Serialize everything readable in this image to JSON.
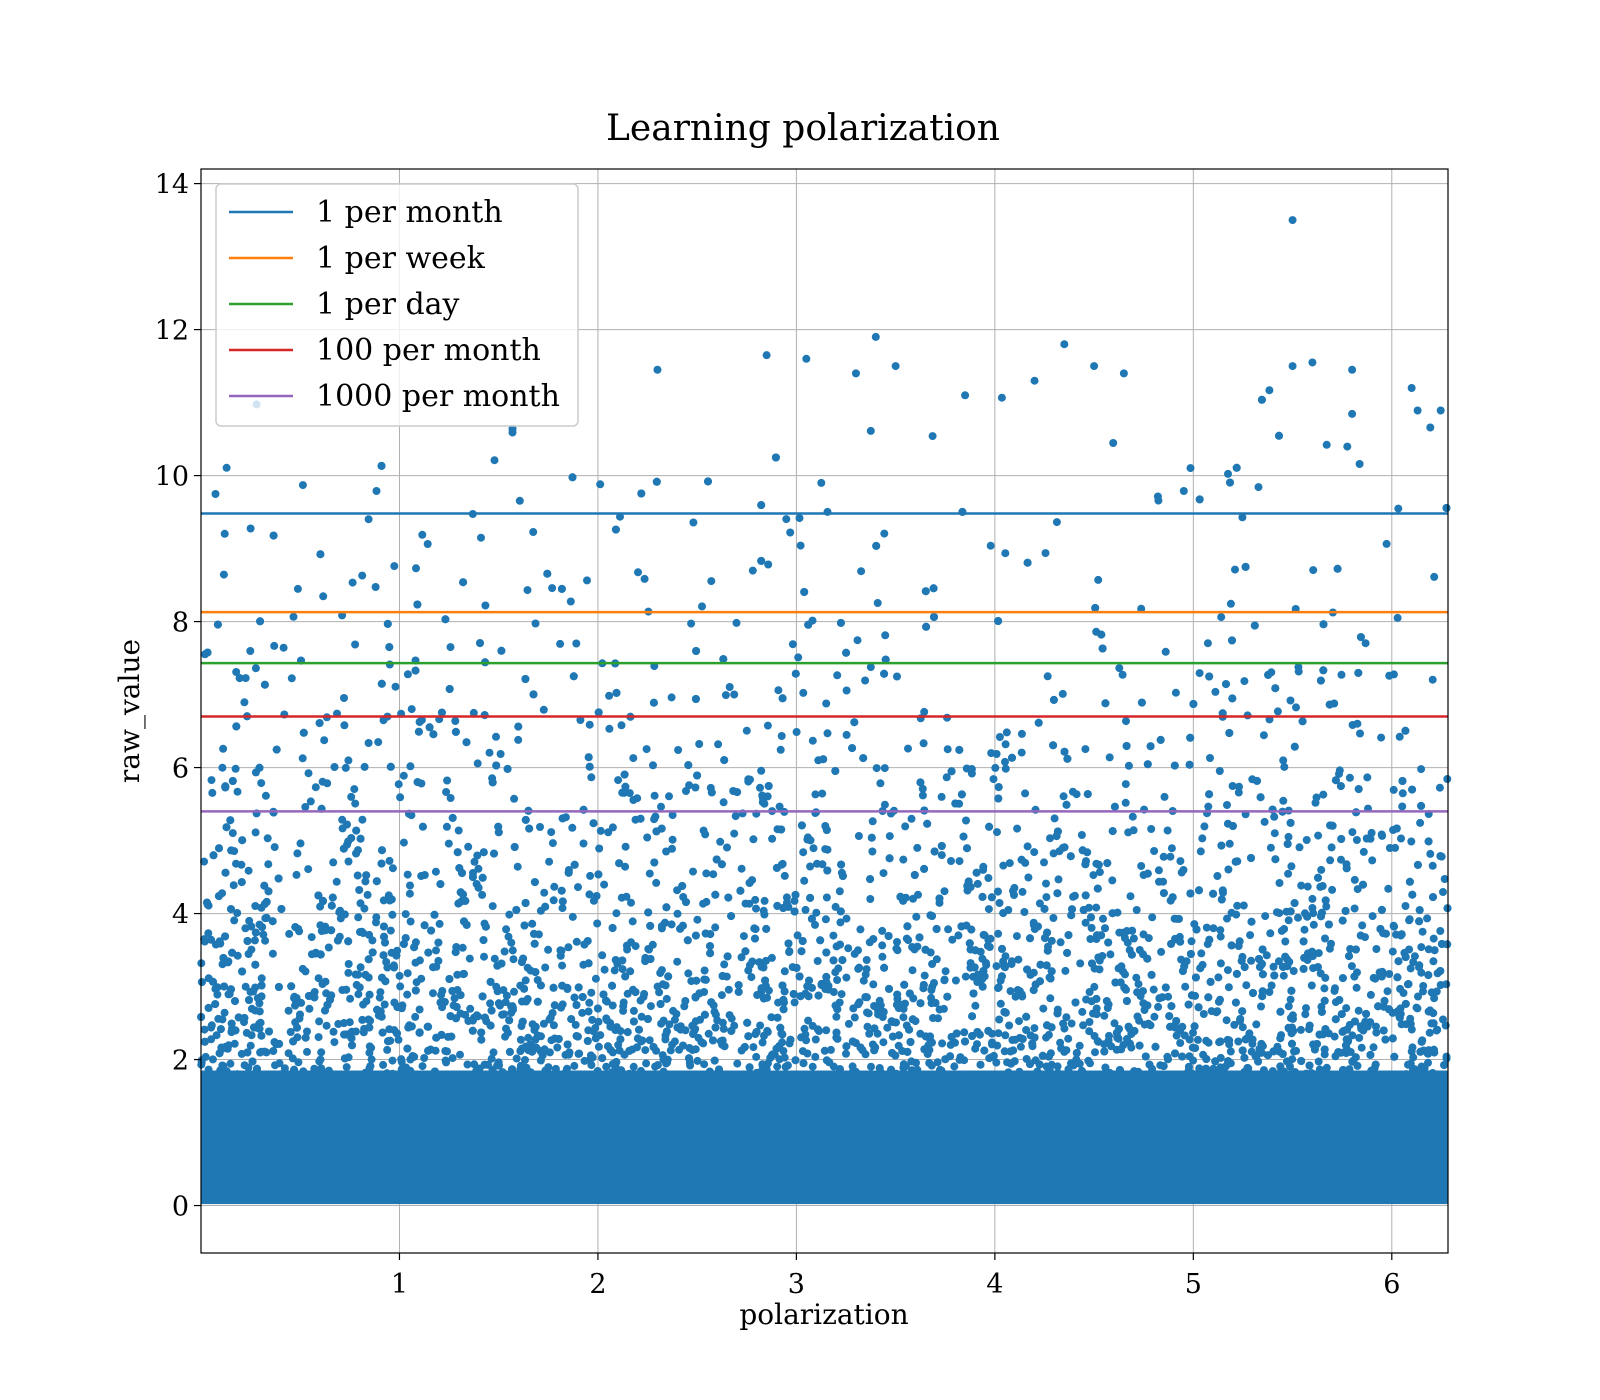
{
  "chart_data": {
    "type": "scatter",
    "title": "Learning polarization",
    "xlabel": "polarization",
    "ylabel": "raw_value",
    "xlim": [
      0.0,
      6.2832
    ],
    "ylim": [
      -0.65,
      14.2
    ],
    "xticks": [
      1,
      2,
      3,
      4,
      5,
      6
    ],
    "yticks": [
      0,
      2,
      4,
      6,
      8,
      10,
      12,
      14
    ],
    "grid": true,
    "legend_position": "top-left",
    "scatter": {
      "color": "#1f77b4",
      "distribution": "dense near 0, exponentially decaying density up to about 12",
      "outliers": [
        {
          "x": 5.5,
          "y": 13.5
        },
        {
          "x": 3.4,
          "y": 11.9
        },
        {
          "x": 4.35,
          "y": 11.8
        },
        {
          "x": 3.05,
          "y": 11.6
        },
        {
          "x": 5.6,
          "y": 11.55
        },
        {
          "x": 4.5,
          "y": 11.5
        },
        {
          "x": 5.8,
          "y": 11.45
        },
        {
          "x": 2.3,
          "y": 11.45
        },
        {
          "x": 3.3,
          "y": 11.4
        },
        {
          "x": 4.65,
          "y": 11.4
        },
        {
          "x": 2.85,
          "y": 11.65
        },
        {
          "x": 3.5,
          "y": 11.5
        },
        {
          "x": 5.5,
          "y": 11.5
        },
        {
          "x": 6.1,
          "y": 11.2
        },
        {
          "x": 4.2,
          "y": 11.3
        },
        {
          "x": 3.85,
          "y": 11.1
        }
      ]
    },
    "series": [
      {
        "name": "1 per month",
        "color": "#1f77b4",
        "y": 9.48
      },
      {
        "name": "1 per week",
        "color": "#ff7f0e",
        "y": 8.13
      },
      {
        "name": "1 per day",
        "color": "#2ca02c",
        "y": 7.43
      },
      {
        "name": "100 per month",
        "color": "#d62728",
        "y": 6.7
      },
      {
        "name": "1000 per month",
        "color": "#9467bd",
        "y": 5.4
      }
    ]
  }
}
